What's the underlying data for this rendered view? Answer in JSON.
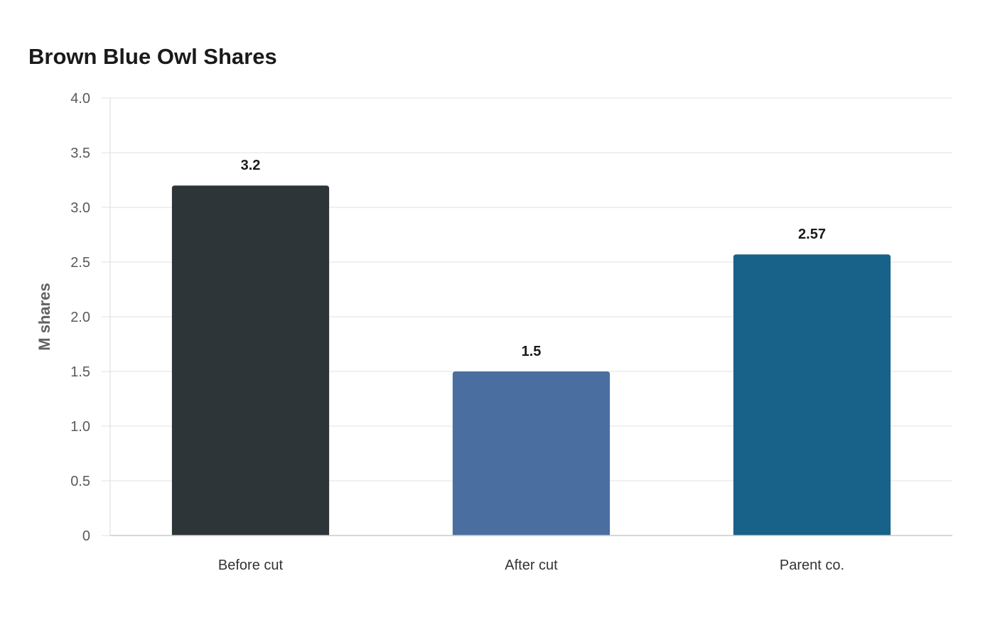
{
  "chart_data": {
    "type": "bar",
    "title": "Brown Blue Owl Shares",
    "ylabel": "M shares",
    "xlabel": "",
    "categories": [
      "Before cut",
      "After cut",
      "Parent co."
    ],
    "values": [
      3.2,
      1.5,
      2.57
    ],
    "value_labels": [
      "3.2",
      "1.5",
      "2.57"
    ],
    "colors": [
      "#2e3538",
      "#4a6ea0",
      "#186189"
    ],
    "ylim": [
      0,
      4
    ],
    "y_ticks": [
      0,
      0.5,
      1.0,
      1.5,
      2.0,
      2.5,
      3.0,
      3.5,
      4.0
    ],
    "y_tick_labels": [
      "0",
      "0.5",
      "1.0",
      "1.5",
      "2.0",
      "2.5",
      "3.0",
      "3.5",
      "4.0"
    ],
    "grid": true,
    "legend": "none"
  }
}
